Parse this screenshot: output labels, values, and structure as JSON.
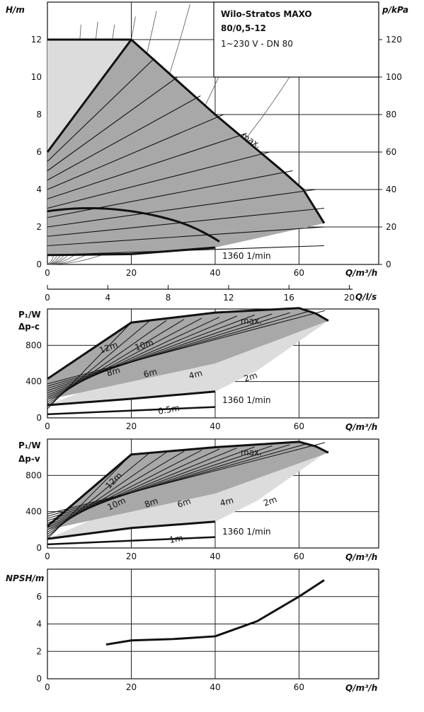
{
  "header": {
    "title_line1": "Wilo-Stratos MAXO",
    "title_line2": "80/0,5-12",
    "subtitle": "1~230 V - DN 80"
  },
  "chart_data": [
    {
      "type": "line",
      "panel": "head",
      "ylabel": "H/m",
      "ylabel_right": "p/kPa",
      "xlabel": "Q/m³/h",
      "xlim": [
        0,
        80
      ],
      "ylim": [
        0,
        14
      ],
      "x_ticks": [
        "0",
        "20",
        "40",
        "60"
      ],
      "y_ticks": [
        "0",
        "2",
        "4",
        "6",
        "8",
        "10",
        "12"
      ],
      "y_ticks_right": [
        "0",
        "20",
        "40",
        "60",
        "80",
        "100",
        "120"
      ],
      "secondary_x_label": "Q/l/s",
      "secondary_x_ticks": [
        "0",
        "4",
        "8",
        "12",
        "16",
        "20"
      ],
      "annotations": [
        "max.",
        "1360 1/min"
      ],
      "grid": true,
      "series": [
        {
          "name": "max.",
          "x": [
            0,
            20,
            40,
            56,
            61,
            66
          ],
          "y": [
            12,
            12,
            8,
            5,
            4,
            2.2
          ]
        },
        {
          "name": "1360 1/min",
          "x": [
            0,
            20,
            40
          ],
          "y": [
            0.5,
            0.55,
            0.9
          ]
        }
      ]
    },
    {
      "type": "line",
      "panel": "power-dp-c",
      "ylabel": "P₁/W",
      "ylabel2": "Δp-c",
      "xlabel": "Q/m³/h",
      "xlim": [
        0,
        80
      ],
      "ylim": [
        0,
        1200
      ],
      "x_ticks": [
        "0",
        "20",
        "40",
        "60"
      ],
      "y_ticks": [
        "0",
        "400",
        "800"
      ],
      "annotations": [
        "max.",
        "12m",
        "10m",
        "8m",
        "6m",
        "4m",
        "2m",
        "0.5m",
        "1360 1/min"
      ],
      "grid": true,
      "series": [
        {
          "name": "max.",
          "x": [
            0,
            20,
            40,
            60,
            64,
            67
          ],
          "y": [
            430,
            1050,
            1160,
            1210,
            1150,
            1070
          ]
        },
        {
          "name": "1360 1/min",
          "x": [
            0,
            20,
            40
          ],
          "y": [
            140,
            210,
            290
          ]
        }
      ]
    },
    {
      "type": "line",
      "panel": "power-dp-v",
      "ylabel": "P₁/W",
      "ylabel2": "Δp-v",
      "xlabel": "Q/m³/h",
      "xlim": [
        0,
        80
      ],
      "ylim": [
        0,
        1200
      ],
      "x_ticks": [
        "0",
        "20",
        "40",
        "60"
      ],
      "y_ticks": [
        "0",
        "400",
        "800"
      ],
      "annotations": [
        "max.",
        "12m",
        "10m",
        "8m",
        "6m",
        "4m",
        "2m",
        "1m",
        "1360 1/min"
      ],
      "grid": true,
      "series": [
        {
          "name": "max.",
          "x": [
            0,
            20,
            40,
            60,
            64,
            67
          ],
          "y": [
            240,
            1030,
            1110,
            1170,
            1120,
            1050
          ]
        },
        {
          "name": "1360 1/min",
          "x": [
            0,
            20,
            40
          ],
          "y": [
            100,
            220,
            290
          ]
        }
      ]
    },
    {
      "type": "line",
      "panel": "npsh",
      "ylabel": "NPSH/m",
      "xlabel": "Q/m³/h",
      "xlim": [
        0,
        80
      ],
      "ylim": [
        0,
        8
      ],
      "x_ticks": [
        "0",
        "20",
        "40",
        "60"
      ],
      "y_ticks": [
        "0",
        "2",
        "4",
        "6"
      ],
      "grid": true,
      "series": [
        {
          "x": [
            14,
            20,
            30,
            40,
            50,
            60,
            66
          ],
          "y": [
            2.5,
            2.8,
            2.9,
            3.1,
            4.2,
            6.0,
            7.2
          ]
        }
      ]
    }
  ]
}
